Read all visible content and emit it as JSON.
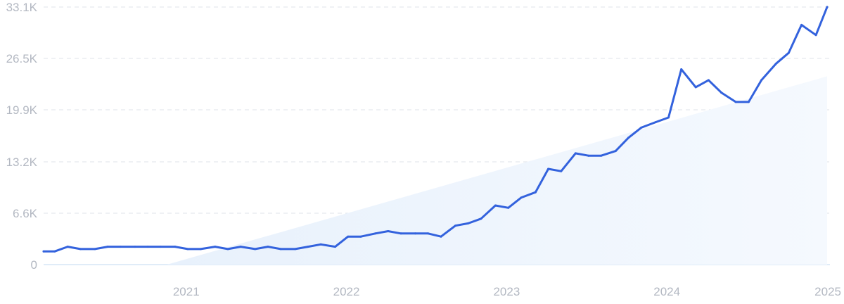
{
  "chart_data": {
    "type": "line",
    "title": "",
    "xlabel": "",
    "ylabel": "",
    "ylim": [
      0,
      33100
    ],
    "xlim": [
      2020.11,
      2025.0
    ],
    "y_ticks": [
      "0",
      "6.6K",
      "13.2K",
      "19.9K",
      "26.5K",
      "33.1K"
    ],
    "y_tick_values": [
      0,
      6600,
      13200,
      19900,
      26500,
      33100
    ],
    "x_ticks": [
      "2021",
      "2022",
      "2023",
      "2024",
      "2025"
    ],
    "x_tick_values": [
      2021,
      2022,
      2023,
      2024,
      2025
    ],
    "grid": true,
    "colors": {
      "line": "#3362dd",
      "trend_fill": "#e3effb",
      "grid": "#dfe3ea",
      "tick_text": "#b3b8c2"
    },
    "series": [
      {
        "values_x": [
          2020.11,
          2020.18,
          2020.26,
          2020.34,
          2020.43,
          2020.51,
          2020.59,
          2020.68,
          2020.76,
          2020.84,
          2020.93,
          2021.01,
          2021.09,
          2021.18,
          2021.26,
          2021.34,
          2021.43,
          2021.51,
          2021.59,
          2021.68,
          2021.76,
          2021.84,
          2021.93,
          2022.01,
          2022.09,
          2022.18,
          2022.26,
          2022.34,
          2022.43,
          2022.51,
          2022.59,
          2022.68,
          2022.76,
          2022.84,
          2022.93,
          2023.01,
          2023.09,
          2023.18,
          2023.26,
          2023.34,
          2023.43,
          2023.51,
          2023.59,
          2023.68,
          2023.76,
          2023.84,
          2023.93,
          2024.01,
          2024.09,
          2024.18,
          2024.26,
          2024.34,
          2024.43,
          2024.51,
          2024.59,
          2024.68,
          2024.76,
          2024.84,
          2024.93,
          2025.0
        ],
        "values_y": [
          1700,
          1700,
          2300,
          2000,
          2000,
          2300,
          2300,
          2300,
          2300,
          2300,
          2300,
          2000,
          2000,
          2300,
          2000,
          2300,
          2000,
          2300,
          2000,
          2000,
          2300,
          2600,
          2300,
          3600,
          3600,
          4000,
          4300,
          4000,
          4000,
          4000,
          3600,
          5000,
          5300,
          5900,
          7600,
          7300,
          8600,
          9300,
          12300,
          12000,
          14300,
          14000,
          14000,
          14600,
          16300,
          17600,
          18300,
          18900,
          25100,
          22800,
          23700,
          22100,
          20900,
          20900,
          23700,
          25800,
          27200,
          30800,
          29500,
          33100
        ]
      }
    ],
    "trend": {
      "x": [
        2020.88,
        2025.0
      ],
      "y": [
        0,
        24200
      ]
    }
  }
}
